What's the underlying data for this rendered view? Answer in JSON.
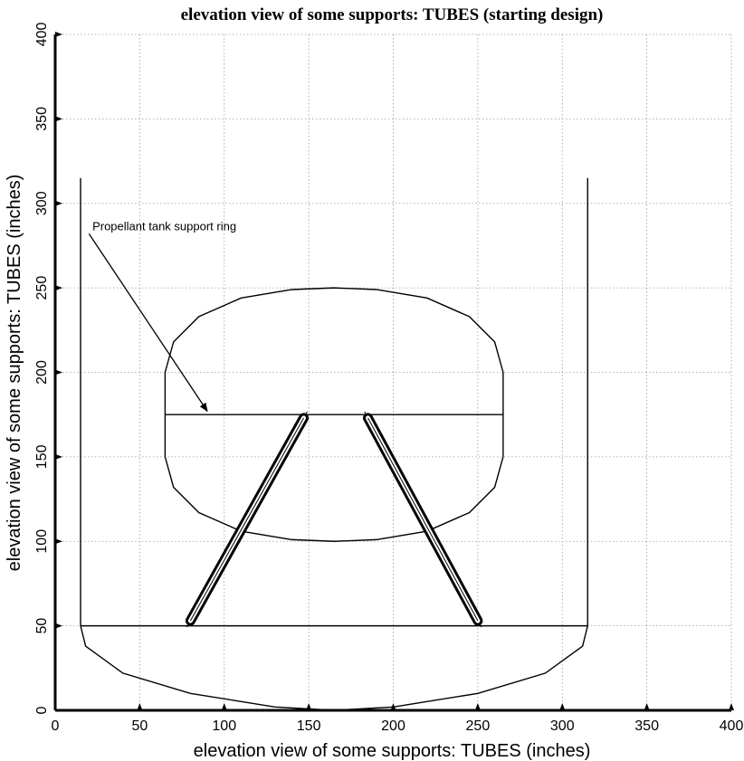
{
  "chart_data": {
    "type": "line",
    "title": "elevation view of some supports: TUBES (starting design)",
    "xlabel": "elevation view of some supports: TUBES (inches)",
    "ylabel": "elevation view of some supports: TUBES (inches)",
    "xlim": [
      0,
      400
    ],
    "ylim": [
      0,
      400
    ],
    "xticks": [
      0,
      50,
      100,
      150,
      200,
      250,
      300,
      350,
      400
    ],
    "yticks": [
      0,
      50,
      100,
      150,
      200,
      250,
      300,
      350,
      400
    ],
    "grid": true,
    "series": [
      {
        "id": "left-wall",
        "points": [
          [
            15,
            50
          ],
          [
            15,
            315
          ]
        ]
      },
      {
        "id": "right-wall",
        "points": [
          [
            315,
            50
          ],
          [
            315,
            315
          ]
        ]
      },
      {
        "id": "base-line",
        "points": [
          [
            15,
            50
          ],
          [
            315,
            50
          ]
        ]
      },
      {
        "id": "bottom-bulkhead",
        "points": [
          [
            15,
            50
          ],
          [
            18,
            38
          ],
          [
            40,
            22
          ],
          [
            80,
            10
          ],
          [
            130,
            2
          ],
          [
            165,
            0
          ],
          [
            200,
            2
          ],
          [
            250,
            10
          ],
          [
            290,
            22
          ],
          [
            312,
            38
          ],
          [
            315,
            50
          ]
        ]
      },
      {
        "id": "tank-upper-dome",
        "points": [
          [
            65,
            200
          ],
          [
            70,
            218
          ],
          [
            85,
            233
          ],
          [
            110,
            244
          ],
          [
            140,
            249
          ],
          [
            165,
            250
          ],
          [
            190,
            249
          ],
          [
            220,
            244
          ],
          [
            245,
            233
          ],
          [
            260,
            218
          ],
          [
            265,
            200
          ]
        ]
      },
      {
        "id": "tank-left-side",
        "points": [
          [
            65,
            200
          ],
          [
            65,
            150
          ]
        ]
      },
      {
        "id": "tank-right-side",
        "points": [
          [
            265,
            200
          ],
          [
            265,
            150
          ]
        ]
      },
      {
        "id": "tank-lower-dome",
        "points": [
          [
            65,
            150
          ],
          [
            70,
            132
          ],
          [
            85,
            117
          ],
          [
            110,
            106
          ],
          [
            140,
            101
          ],
          [
            165,
            100
          ],
          [
            190,
            101
          ],
          [
            220,
            106
          ],
          [
            245,
            117
          ],
          [
            260,
            132
          ],
          [
            265,
            150
          ]
        ]
      },
      {
        "id": "support-ring",
        "points": [
          [
            65,
            175
          ],
          [
            265,
            175
          ]
        ]
      }
    ],
    "tubes": [
      {
        "id": "left-tube",
        "from": [
          80,
          53
        ],
        "to": [
          147,
          173
        ]
      },
      {
        "id": "right-tube",
        "from": [
          185,
          173
        ],
        "to": [
          250,
          53
        ]
      }
    ],
    "annotations": [
      {
        "text": "Propellant tank support ring",
        "text_at": [
          22,
          283
        ],
        "arrow_from": [
          20,
          282
        ],
        "arrow_to": [
          90,
          177
        ]
      }
    ]
  }
}
